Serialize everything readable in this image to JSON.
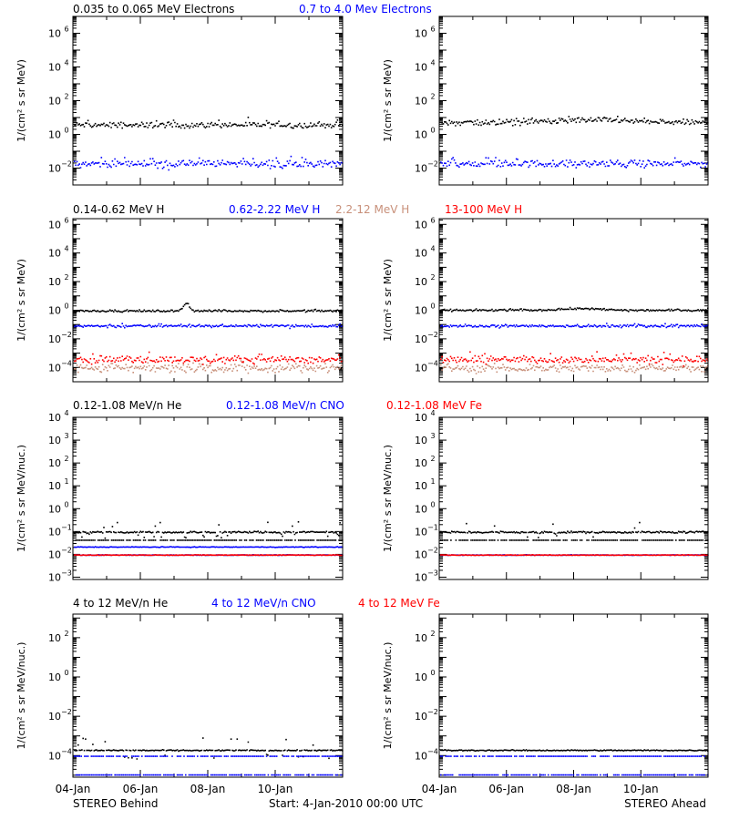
{
  "footer": {
    "left_label": "STEREO Behind",
    "start_label": "Start:  4-Jan-2010 00:00 UTC",
    "right_label": "STEREO Ahead"
  },
  "x_axis": {
    "tick_labels": [
      "04-Jan",
      "06-Jan",
      "08-Jan",
      "10-Jan"
    ],
    "days_shown": 8
  },
  "colors": {
    "black": "#000000",
    "blue": "#0000ff",
    "tan": "#c8907a",
    "red": "#ff0000"
  },
  "chart_data": [
    {
      "type": "scatter",
      "title_parts": [
        {
          "text": "0.035 to 0.065 MeV Electrons",
          "color": "#000000"
        },
        {
          "text": "0.7 to 4.0 Mev Electrons",
          "color": "#0000ff"
        }
      ],
      "ylabel": "1/(cm² s sr MeV)",
      "ylim_log10": [
        -3,
        7
      ],
      "ytick_exponents": [
        -2,
        0,
        2,
        4,
        6
      ],
      "panels": [
        {
          "side": "STEREO Behind",
          "series": [
            {
              "color": "#000000",
              "level_log10": 0.6,
              "scatter": 0.12,
              "outliers": 0.08
            },
            {
              "color": "#0000ff",
              "level_log10": -1.7,
              "scatter": 0.15,
              "outliers": 0.12
            }
          ]
        },
        {
          "side": "STEREO Ahead",
          "series": [
            {
              "color": "#000000",
              "level_log10": 0.75,
              "scatter": 0.12,
              "outliers": 0.08,
              "bump": {
                "day": 4.5,
                "amp": 0.15,
                "width": 1.5
              }
            },
            {
              "color": "#0000ff",
              "level_log10": -1.7,
              "scatter": 0.15,
              "outliers": 0.12
            }
          ]
        }
      ]
    },
    {
      "type": "scatter",
      "title_parts": [
        {
          "text": "0.14-0.62 MeV H",
          "color": "#000000"
        },
        {
          "text": "0.62-2.22 MeV H",
          "color": "#0000ff"
        },
        {
          "text": "2.2-12 MeV H",
          "color": "#c8907a"
        },
        {
          "text": "13-100 MeV H",
          "color": "#ff0000"
        }
      ],
      "ylabel": "1/(cm² s sr MeV)",
      "ylim_log10": [
        -5,
        6.4
      ],
      "ytick_exponents": [
        -4,
        -2,
        0,
        2,
        4,
        6
      ],
      "panels": [
        {
          "side": "STEREO Behind",
          "series": [
            {
              "color": "#000000",
              "level_log10": 0.0,
              "scatter": 0.05,
              "outliers": 0.03,
              "bump": {
                "day": 3.35,
                "amp": 0.55,
                "width": 0.12
              }
            },
            {
              "color": "#0000ff",
              "level_log10": -1.05,
              "scatter": 0.06,
              "outliers": 0.05
            },
            {
              "color": "#c8907a",
              "level_log10": -4.0,
              "scatter": 0.2,
              "outliers": 0.1
            },
            {
              "color": "#ff0000",
              "level_log10": -3.4,
              "scatter": 0.17,
              "outliers": 0.15
            }
          ]
        },
        {
          "side": "STEREO Ahead",
          "series": [
            {
              "color": "#000000",
              "level_log10": 0.05,
              "scatter": 0.05,
              "outliers": 0.03,
              "bump": {
                "day": 4.2,
                "amp": 0.12,
                "width": 0.8
              }
            },
            {
              "color": "#0000ff",
              "level_log10": -1.05,
              "scatter": 0.06,
              "outliers": 0.05
            },
            {
              "color": "#c8907a",
              "level_log10": -4.0,
              "scatter": 0.2,
              "outliers": 0.1
            },
            {
              "color": "#ff0000",
              "level_log10": -3.4,
              "scatter": 0.17,
              "outliers": 0.15
            }
          ]
        }
      ]
    },
    {
      "type": "scatter",
      "title_parts": [
        {
          "text": "0.12-1.08 MeV/n He",
          "color": "#000000"
        },
        {
          "text": "0.12-1.08 MeV/n CNO",
          "color": "#0000ff"
        },
        {
          "text": "0.12-1.08 MeV Fe",
          "color": "#ff0000"
        }
      ],
      "ylabel": "1/(cm² s sr MeV/nuc.)",
      "ylim_log10": [
        -3.1,
        4
      ],
      "ytick_exponents": [
        -3,
        -2,
        -1,
        0,
        1,
        2,
        3,
        4
      ],
      "panels": [
        {
          "side": "STEREO Behind",
          "series": [
            {
              "color": "#000000",
              "level_log10": -1.0,
              "scatter": 0.03,
              "outliers": 0.15
            },
            {
              "color": "#000000",
              "level_log10": -1.35,
              "scatter": 0.0,
              "outliers": 0.0
            },
            {
              "color": "#0000ff",
              "level_log10": -1.65,
              "scatter": 0.01,
              "outliers": 0.0
            },
            {
              "color": "#0000ff",
              "level_log10": -2.0,
              "scatter": 0.01,
              "outliers": 0.0
            },
            {
              "color": "#ff0000",
              "level_log10": -2.0,
              "scatter": 0.01,
              "outliers": 0.0
            }
          ]
        },
        {
          "side": "STEREO Ahead",
          "series": [
            {
              "color": "#000000",
              "level_log10": -1.0,
              "scatter": 0.03,
              "outliers": 0.15
            },
            {
              "color": "#000000",
              "level_log10": -1.35,
              "scatter": 0.0,
              "outliers": 0.0
            },
            {
              "color": "#0000ff",
              "level_log10": -2.0,
              "scatter": 0.01,
              "outliers": 0.0
            },
            {
              "color": "#ff0000",
              "level_log10": -2.0,
              "scatter": 0.01,
              "outliers": 0.0
            }
          ]
        }
      ]
    },
    {
      "type": "scatter",
      "title_parts": [
        {
          "text": "4 to 12 MeV/n He",
          "color": "#000000"
        },
        {
          "text": "4 to 12 MeV/n CNO",
          "color": "#0000ff"
        },
        {
          "text": "4 to 12 MeV Fe",
          "color": "#ff0000"
        }
      ],
      "ylabel": "1/(cm² s sr MeV/nuc.)",
      "ylim_log10": [
        -5.1,
        3.2
      ],
      "ytick_exponents": [
        -4,
        -2,
        0,
        2
      ],
      "panels": [
        {
          "side": "STEREO Behind",
          "series": [
            {
              "color": "#000000",
              "level_log10": -3.7,
              "scatter": 0.02,
              "outliers": 0.25
            },
            {
              "color": "#0000ff",
              "level_log10": -4.0,
              "scatter": 0.0,
              "outliers": 0.0
            },
            {
              "color": "#0000ff",
              "level_log10": -4.95,
              "scatter": 0.0,
              "outliers": 0.0
            }
          ]
        },
        {
          "side": "STEREO Ahead",
          "series": [
            {
              "color": "#000000",
              "level_log10": -3.7,
              "scatter": 0.02,
              "outliers": 0.0
            },
            {
              "color": "#0000ff",
              "level_log10": -4.0,
              "scatter": 0.0,
              "outliers": 0.0
            },
            {
              "color": "#0000ff",
              "level_log10": -4.95,
              "scatter": 0.0,
              "outliers": 0.0
            }
          ]
        }
      ]
    }
  ]
}
